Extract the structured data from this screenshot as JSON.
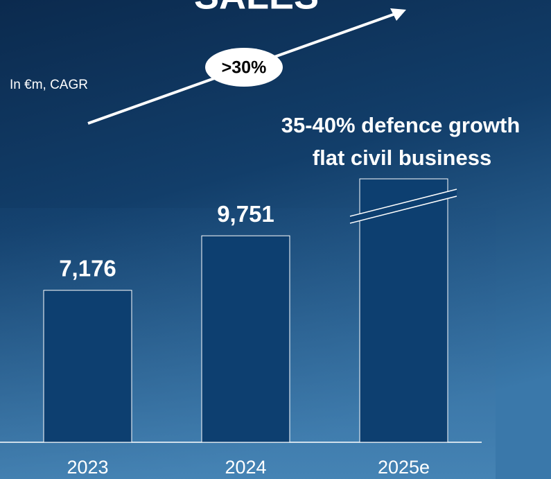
{
  "chart_data": {
    "type": "bar",
    "title": "SALES",
    "subtitle": "In €m, CAGR",
    "categories": [
      "2023",
      "2024",
      "2025e"
    ],
    "values": [
      7176,
      9751,
      12440
    ],
    "value_labels": [
      "7,176",
      "9,751",
      null
    ],
    "color": "#0d3f70",
    "annotations": [
      ">30%",
      "35-40% defence growth",
      "flat civil business"
    ]
  }
}
